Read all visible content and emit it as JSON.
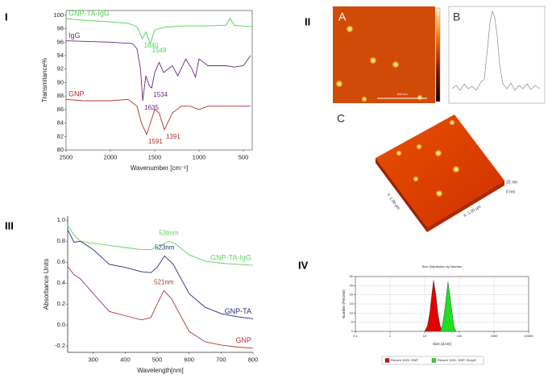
{
  "panel_labels": [
    "I",
    "II",
    "III",
    "IV"
  ],
  "chart_data": [
    {
      "type": "line",
      "xlabel": "Wavenumber [cm⁻¹]",
      "ylabel": "Transmitance%",
      "xlim": [
        2500,
        400
      ],
      "xticks": [
        2500,
        2000,
        1500,
        1000,
        500
      ],
      "ylim": [
        80,
        100.7
      ],
      "yticks": [
        80,
        82,
        84,
        86,
        88,
        90,
        92,
        94,
        96,
        98,
        100
      ],
      "series": [
        {
          "name": "GNP-TA-IgG",
          "color": "#4fd34f",
          "x": [
            2500,
            2350,
            2000,
            1800,
            1700,
            1640,
            1600,
            1549,
            1500,
            1400,
            1200,
            1000,
            700,
            650,
            600,
            400
          ],
          "values": [
            99.5,
            99.3,
            99.0,
            98.8,
            98.3,
            96.5,
            97.5,
            95.8,
            97.8,
            98.2,
            98.4,
            98.4,
            98.5,
            99.5,
            98.5,
            98.3
          ],
          "peaks": [
            1640,
            1549
          ]
        },
        {
          "name": "IgG",
          "color": "#6a2a7a",
          "x": [
            2500,
            2000,
            1750,
            1700,
            1660,
            1635,
            1600,
            1560,
            1534,
            1500,
            1450,
            1400,
            1300,
            1240,
            1150,
            1080,
            1040,
            1000,
            900,
            800,
            700,
            600,
            500,
            420
          ],
          "values": [
            96.2,
            96.0,
            95.8,
            95.0,
            92.0,
            87.3,
            91.0,
            89.5,
            89.2,
            91.5,
            93.0,
            91.5,
            92.5,
            91.0,
            93.5,
            92.0,
            90.8,
            93.5,
            92.5,
            92.5,
            92.5,
            92.3,
            92.5,
            94.0
          ],
          "peaks": [
            1635,
            1534
          ]
        },
        {
          "name": "GNP",
          "color": "#b03030",
          "x": [
            2500,
            2300,
            2000,
            1800,
            1700,
            1650,
            1591,
            1500,
            1450,
            1391,
            1300,
            1200,
            1100,
            1000,
            900,
            800,
            700,
            600,
            420
          ],
          "values": [
            87.5,
            87.3,
            87.3,
            87.5,
            86.5,
            84.0,
            82.3,
            86.0,
            85.5,
            83.0,
            85.5,
            86.5,
            86.5,
            86.0,
            86.5,
            86.5,
            86.5,
            86.5,
            86.5
          ],
          "peaks": [
            1591,
            1391
          ]
        }
      ]
    },
    {
      "type": "line",
      "xlabel": "Wavelength[nm]",
      "ylabel": "Absorbance Units",
      "xlim": [
        220,
        800
      ],
      "xticks": [
        300,
        400,
        500,
        600,
        700,
        800
      ],
      "ylim": [
        -0.26,
        1.04
      ],
      "yticks": [
        -0.2,
        {
          "value": 0,
          "label": "0.0"
        },
        0.2,
        0.4,
        0.6,
        0.8,
        {
          "value": 1,
          "label": "1.0"
        }
      ],
      "series": [
        {
          "name": "GNP-TA-IgG",
          "color": "#5fd35f",
          "x": [
            220,
            240,
            260,
            300,
            350,
            400,
            450,
            480,
            510,
            536,
            560,
            600,
            650,
            700,
            750,
            800
          ],
          "values": [
            0.95,
            0.86,
            0.8,
            0.78,
            0.76,
            0.74,
            0.72,
            0.72,
            0.76,
            0.8,
            0.77,
            0.67,
            0.61,
            0.59,
            0.58,
            0.57
          ],
          "peaks": [
            {
              "value": 536,
              "label": "536nm"
            }
          ]
        },
        {
          "name": "GNP-TA",
          "color": "#2a2a7a",
          "x": [
            220,
            240,
            260,
            300,
            350,
            400,
            450,
            480,
            500,
            523,
            550,
            600,
            650,
            700,
            750,
            800
          ],
          "values": [
            0.91,
            0.79,
            0.8,
            0.72,
            0.58,
            0.55,
            0.51,
            0.5,
            0.55,
            0.66,
            0.58,
            0.3,
            0.17,
            0.11,
            0.08,
            0.06
          ],
          "peaks": [
            {
              "value": 523,
              "label": "523nm"
            }
          ]
        },
        {
          "name": "GNP",
          "color": "#a83a3a",
          "x": [
            220,
            240,
            260,
            300,
            350,
            400,
            450,
            480,
            500,
            521,
            545,
            600,
            650,
            700,
            750,
            800
          ],
          "values": [
            0.56,
            0.48,
            0.44,
            0.3,
            0.13,
            0.09,
            0.05,
            0.07,
            0.2,
            0.33,
            0.25,
            -0.06,
            -0.16,
            -0.19,
            -0.21,
            -0.22
          ],
          "peaks": [
            {
              "value": 521,
              "label": "521nm"
            }
          ]
        }
      ]
    },
    {
      "type": "area",
      "title": "Size Distribution by Number",
      "xlabel": "Size (d.nm)",
      "ylabel": "Number (Percent)",
      "xscale": "log",
      "grid": true,
      "xlim": [
        0.1,
        10000
      ],
      "xticks": [
        0.1,
        1,
        10,
        100,
        1000,
        10000
      ],
      "ylim": [
        0,
        30
      ],
      "yticks": [
        0,
        5,
        10,
        15,
        20,
        25,
        30
      ],
      "series": [
        {
          "name": "Record 1320: GNP",
          "color": "#e00000",
          "x": [
            10,
            12,
            14,
            16,
            18,
            21,
            24,
            28,
            33
          ],
          "values": [
            0,
            3,
            10,
            20,
            28,
            20,
            10,
            3,
            0
          ]
        },
        {
          "name": "Record 1321: GNP-TA-IgG",
          "color": "#22dd22",
          "x": [
            28,
            32,
            37,
            42,
            47,
            54,
            62,
            70,
            80
          ],
          "values": [
            0,
            3,
            10,
            19,
            27,
            19,
            10,
            3,
            0
          ]
        }
      ]
    }
  ],
  "afm": {
    "image_a": "A",
    "profile_b": "B",
    "image_c": "C",
    "scale_bar": "160 nm",
    "z_max": "32 nm",
    "z_min": "0 nm",
    "x_axis": "X: 1.00 µm",
    "y_axis": "Y: 1.00 µm"
  }
}
